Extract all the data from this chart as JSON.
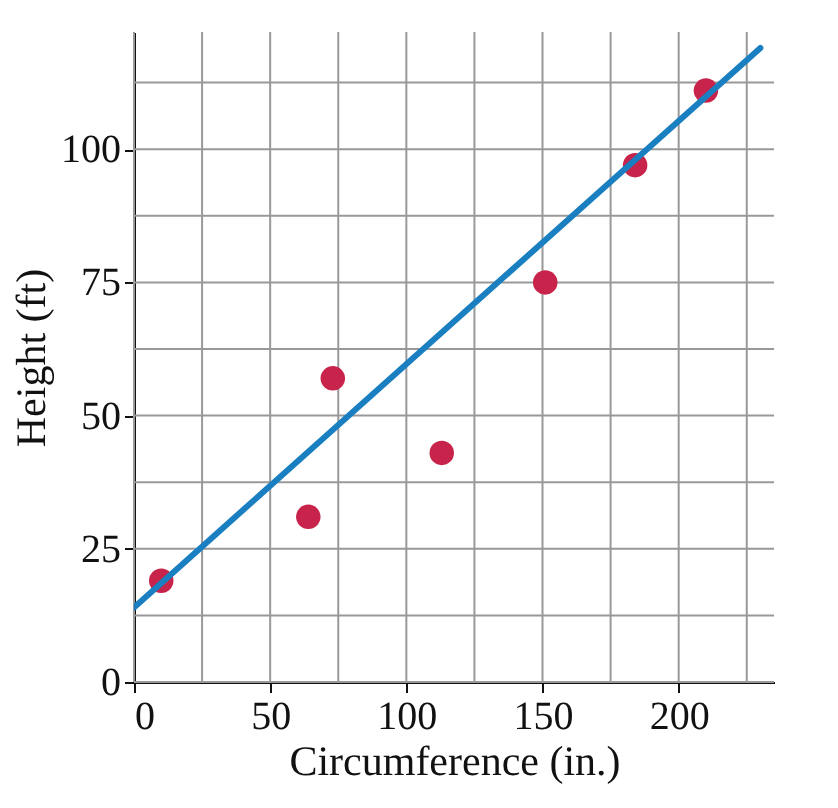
{
  "chart_data": {
    "type": "scatter",
    "xlabel": "Circumference (in.)",
    "ylabel": "Height (ft)",
    "x": [
      10,
      64,
      73,
      113,
      151,
      184,
      210
    ],
    "series": [
      {
        "type": "scatter",
        "color": "#c8234a",
        "marker": "circle",
        "values": [
          19,
          31,
          57,
          43,
          75,
          97,
          111
        ]
      },
      {
        "type": "line",
        "color": "#1a7fc1",
        "x": [
          0,
          230
        ],
        "values": [
          14,
          119
        ]
      }
    ],
    "xlim": [
      0,
      235
    ],
    "ylim": [
      0,
      122
    ],
    "xticks": [
      0,
      {
        "value": 25,
        "label": null
      },
      50,
      {
        "value": 75,
        "label": null
      },
      100,
      {
        "value": 125,
        "label": null
      },
      150,
      {
        "value": 175,
        "label": null
      },
      200,
      {
        "value": 225,
        "label": null
      }
    ],
    "yticks": [
      0,
      {
        "value": 12.5,
        "label": null
      },
      25,
      {
        "value": 37.5,
        "label": null
      },
      50,
      {
        "value": 62.5,
        "label": null
      },
      75,
      {
        "value": 87.5,
        "label": null
      },
      100,
      {
        "value": 112.5,
        "label": null
      }
    ],
    "grid": true,
    "line_style": "solid"
  }
}
